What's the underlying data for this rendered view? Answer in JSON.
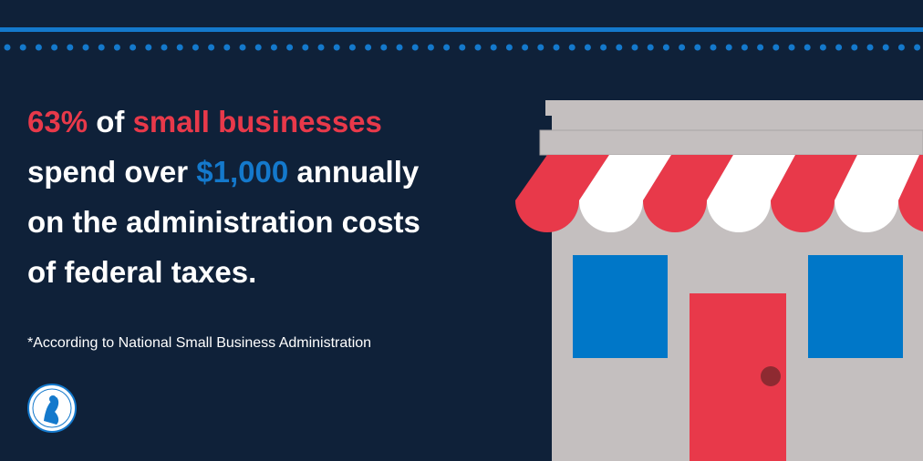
{
  "headline": {
    "line1": [
      "63%",
      "of",
      "small businesses"
    ],
    "line2": [
      "spend over",
      "$1,000",
      "annually"
    ],
    "line3": "on the administration costs",
    "line4": "of federal taxes."
  },
  "footnote": "*According to National Small Business Administration"
}
